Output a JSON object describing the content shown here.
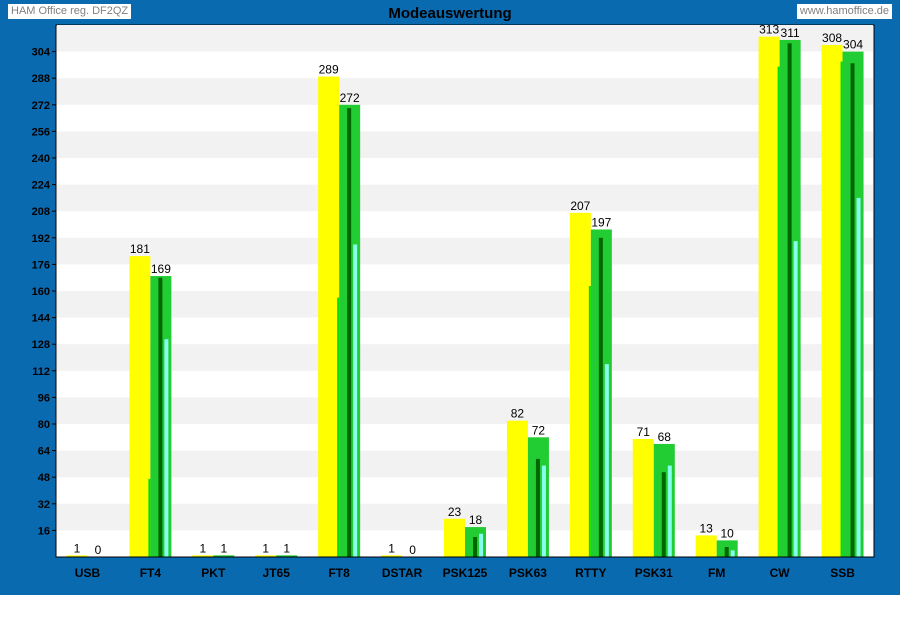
{
  "header": {
    "owner_label": "HAM Office reg. DF2QZ",
    "website_label": "www.hamoffice.de"
  },
  "colors": {
    "frame": "#0a6ab0",
    "series_a": "#ffff00",
    "series_a_inner": "#00e000",
    "series_b": "#22cc33",
    "series_b_dark": "#006600",
    "series_b_light": "#88ffee",
    "band": "#f2f2f2"
  },
  "chart_data": {
    "type": "bar",
    "title": "Modeauswertung",
    "xlabel": "",
    "ylabel": "",
    "ylim": [
      0,
      320
    ],
    "yticks": [
      16,
      32,
      48,
      64,
      80,
      96,
      112,
      128,
      144,
      160,
      176,
      192,
      208,
      224,
      240,
      256,
      272,
      288,
      304
    ],
    "grid": "alternating horizontal bands",
    "legend": "none",
    "categories": [
      "USB",
      "FT4",
      "PKT",
      "JT65",
      "FT8",
      "DSTAR",
      "PSK125",
      "PSK63",
      "RTTY",
      "PSK31",
      "FM",
      "CW",
      "SSB"
    ],
    "series": [
      {
        "values": [
          1,
          181,
          1,
          1,
          289,
          1,
          23,
          82,
          207,
          71,
          13,
          313,
          308
        ],
        "inner_values": [
          0,
          47,
          0,
          0,
          156,
          0,
          0,
          0,
          163,
          0,
          0,
          295,
          298
        ]
      },
      {
        "values": [
          0,
          169,
          1,
          1,
          272,
          0,
          18,
          72,
          197,
          68,
          10,
          311,
          304
        ],
        "dark_values": [
          0,
          168,
          0,
          0,
          270,
          0,
          12,
          59,
          192,
          51,
          6,
          309,
          297
        ],
        "light_values": [
          0,
          131,
          0,
          0,
          188,
          0,
          14,
          55,
          116,
          55,
          4,
          190,
          216
        ]
      }
    ]
  }
}
